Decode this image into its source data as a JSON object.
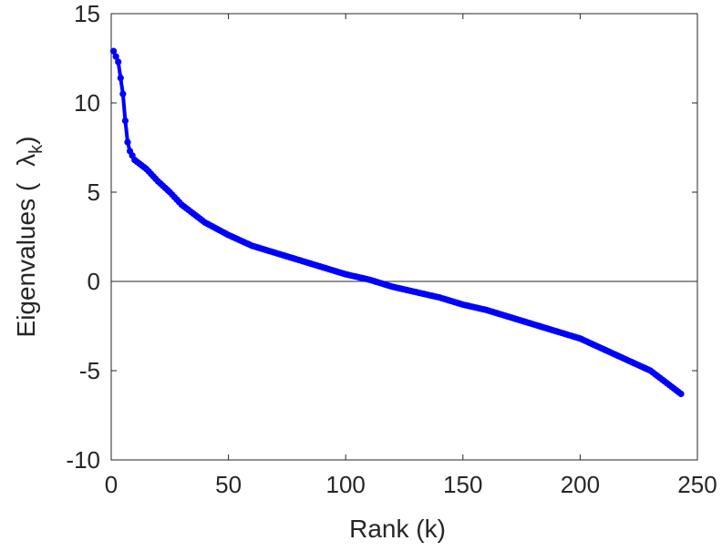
{
  "chart_data": {
    "type": "line",
    "title": "",
    "xlabel": "Rank (k)",
    "ylabel": "Eigenvalues (",
    "ylabel_symbol": "λ",
    "ylabel_subscript": "k",
    "ylabel_close": ")",
    "xlim": [
      0,
      250
    ],
    "ylim": [
      -10,
      15
    ],
    "xticks": [
      0,
      50,
      100,
      150,
      200,
      250
    ],
    "yticks": [
      -10,
      -5,
      0,
      5,
      10,
      15
    ],
    "xtick_labels": [
      "0",
      "50",
      "100",
      "150",
      "200",
      "250"
    ],
    "ytick_labels": [
      "-10",
      "-5",
      "0",
      "5",
      "10",
      "15"
    ],
    "grid": false,
    "reference_line_y": 0,
    "series": [
      {
        "name": "eigenvalues",
        "color": "#0000ff",
        "marker": "circle",
        "n_points": 243,
        "x": [
          1,
          3,
          5,
          6,
          7,
          8,
          10,
          15,
          20,
          25,
          30,
          40,
          50,
          60,
          70,
          80,
          90,
          100,
          110,
          120,
          130,
          140,
          150,
          160,
          170,
          180,
          190,
          200,
          210,
          220,
          230,
          236,
          240,
          243
        ],
        "y": [
          12.9,
          12.3,
          10.5,
          9.0,
          7.8,
          7.3,
          6.8,
          6.3,
          5.6,
          5.0,
          4.3,
          3.3,
          2.6,
          2.0,
          1.6,
          1.2,
          0.8,
          0.4,
          0.1,
          -0.3,
          -0.6,
          -0.9,
          -1.3,
          -1.6,
          -2.0,
          -2.4,
          -2.8,
          -3.2,
          -3.8,
          -4.4,
          -5.0,
          -5.6,
          -6.0,
          -6.3
        ]
      }
    ]
  }
}
